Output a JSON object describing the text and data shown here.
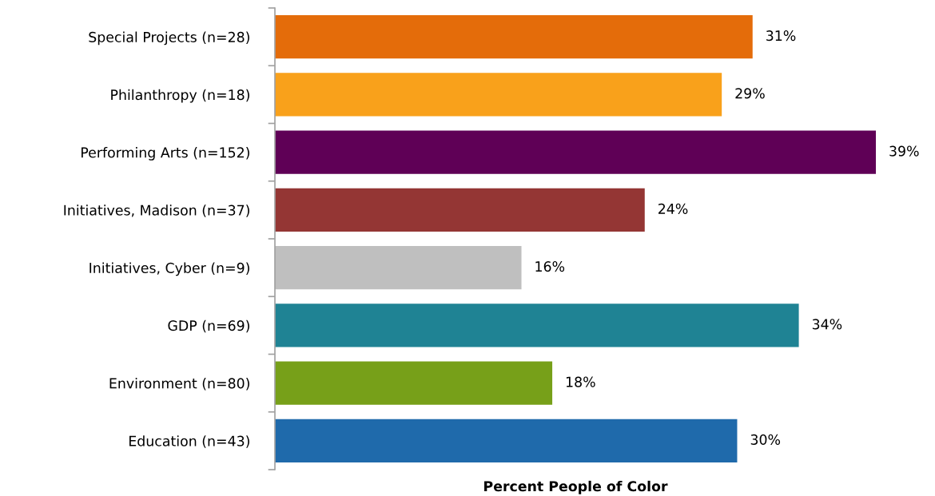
{
  "chart_data": {
    "type": "bar",
    "orientation": "horizontal",
    "xlabel": "Percent People of Color",
    "categories": [
      "Special Projects (n=28)",
      "Philanthropy (n=18)",
      "Performing Arts (n=152)",
      "Initiatives, Madison (n=37)",
      "Initiatives, Cyber (n=9)",
      "GDP (n=69)",
      "Environment (n=80)",
      "Education (n=43)"
    ],
    "values": [
      31,
      29,
      39,
      24,
      16,
      34,
      18,
      30
    ],
    "value_labels": [
      "31%",
      "29%",
      "39%",
      "24%",
      "16%",
      "34%",
      "18%",
      "30%"
    ],
    "colors": [
      "#e46c0a",
      "#f9a11b",
      "#5f0056",
      "#943634",
      "#bfbfbf",
      "#1f8394",
      "#77a019",
      "#1f6aab"
    ],
    "tick_labels": "y",
    "grid": false,
    "legend": false
  }
}
